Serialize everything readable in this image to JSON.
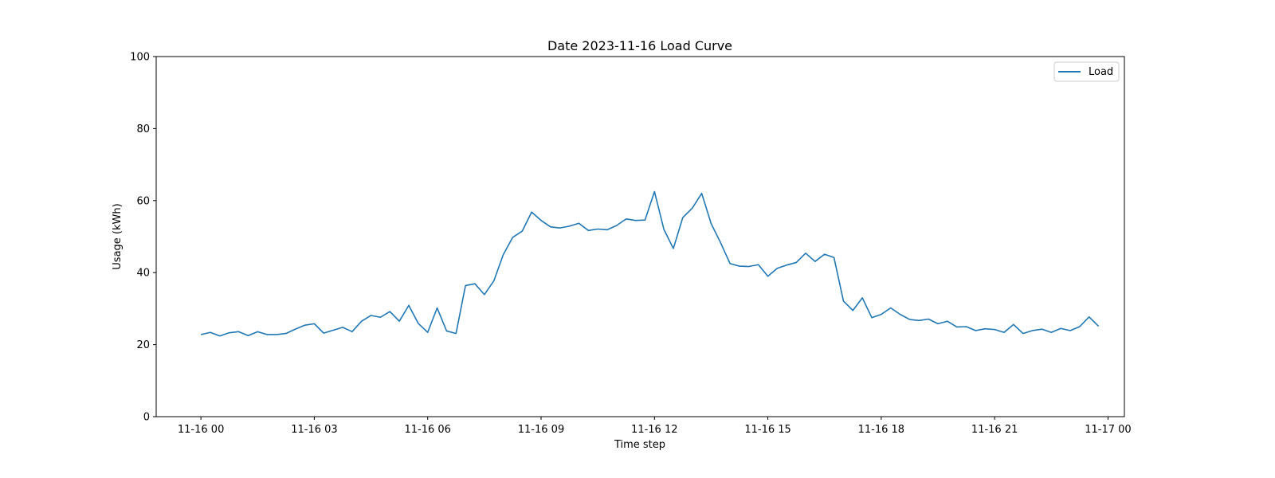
{
  "chart_data": {
    "type": "line",
    "title": "Date 2023-11-16 Load Curve",
    "xlabel": "Time step",
    "ylabel": "Usage (kWh)",
    "ylim": [
      0,
      100
    ],
    "yticks": [
      0,
      20,
      40,
      60,
      80,
      100
    ],
    "xlim": [
      "2023-11-15 22:49",
      "2023-11-17 00:26"
    ],
    "xticks": [
      {
        "value": "2023-11-16 00:00",
        "label": "11-16 00"
      },
      {
        "value": "2023-11-16 03:00",
        "label": "11-16 03"
      },
      {
        "value": "2023-11-16 06:00",
        "label": "11-16 06"
      },
      {
        "value": "2023-11-16 09:00",
        "label": "11-16 09"
      },
      {
        "value": "2023-11-16 12:00",
        "label": "11-16 12"
      },
      {
        "value": "2023-11-16 15:00",
        "label": "11-16 15"
      },
      {
        "value": "2023-11-16 18:00",
        "label": "11-16 18"
      },
      {
        "value": "2023-11-16 21:00",
        "label": "11-16 21"
      },
      {
        "value": "2023-11-17 00:00",
        "label": "11-17 00"
      }
    ],
    "grid": false,
    "legend_position": "top-right",
    "x_start": "2023-11-16 00:00",
    "x_interval_minutes": 15,
    "series": [
      {
        "name": "Load",
        "color": "#1f77b4",
        "values": [
          22.8,
          23.4,
          22.4,
          23.3,
          23.6,
          22.5,
          23.6,
          22.8,
          22.8,
          23.1,
          24.3,
          25.4,
          25.8,
          23.2,
          24.0,
          24.8,
          23.6,
          26.5,
          28.1,
          27.6,
          29.2,
          26.5,
          30.9,
          25.9,
          23.4,
          30.2,
          23.8,
          23.1,
          36.4,
          36.9,
          33.9,
          37.7,
          45.0,
          49.8,
          51.5,
          56.8,
          54.5,
          52.7,
          52.4,
          52.9,
          53.7,
          51.7,
          52.1,
          51.9,
          53.1,
          54.9,
          54.5,
          54.6,
          62.5,
          52.0,
          46.7,
          55.3,
          57.9,
          62.0,
          53.6,
          48.3,
          42.5,
          41.8,
          41.7,
          42.2,
          39.0,
          41.2,
          42.1,
          42.8,
          45.4,
          43.1,
          45.1,
          44.2,
          32.1,
          29.5,
          33.0,
          27.5,
          28.4,
          30.2,
          28.4,
          27.0,
          26.7,
          27.1,
          25.8,
          26.5,
          24.9,
          25.0,
          23.9,
          24.4,
          24.2,
          23.4,
          25.6,
          23.1,
          23.9,
          24.3,
          23.4,
          24.5,
          23.9,
          25.0,
          27.7,
          25.1
        ]
      }
    ]
  }
}
